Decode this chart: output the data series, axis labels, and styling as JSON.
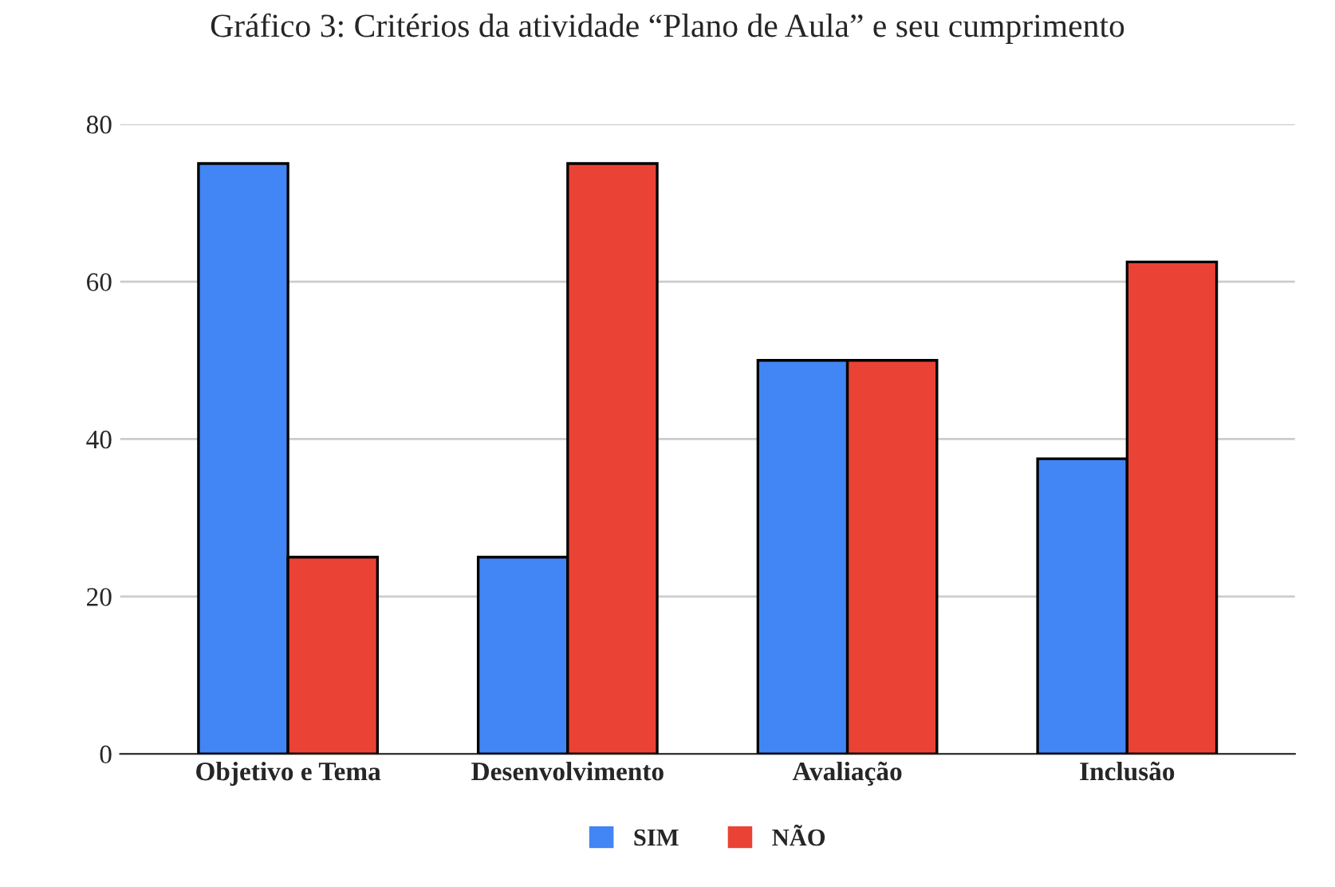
{
  "chart_data": {
    "type": "bar",
    "title": "Gráfico 3: Critérios da atividade “Plano de Aula” e seu cumprimento",
    "categories": [
      "Objetivo e Tema",
      "Desenvolvimento",
      "Avaliação",
      "Inclusão"
    ],
    "series": [
      {
        "name": "SIM",
        "color": "#4285f4",
        "values": [
          75,
          25,
          50,
          37.5
        ]
      },
      {
        "name": "NÃO",
        "color": "#ea4335",
        "values": [
          25,
          75,
          50,
          62.5
        ]
      }
    ],
    "ylim": [
      0,
      80
    ],
    "yticks": [
      0,
      20,
      40,
      60,
      80
    ],
    "grid": "y",
    "legend": "bottom"
  }
}
